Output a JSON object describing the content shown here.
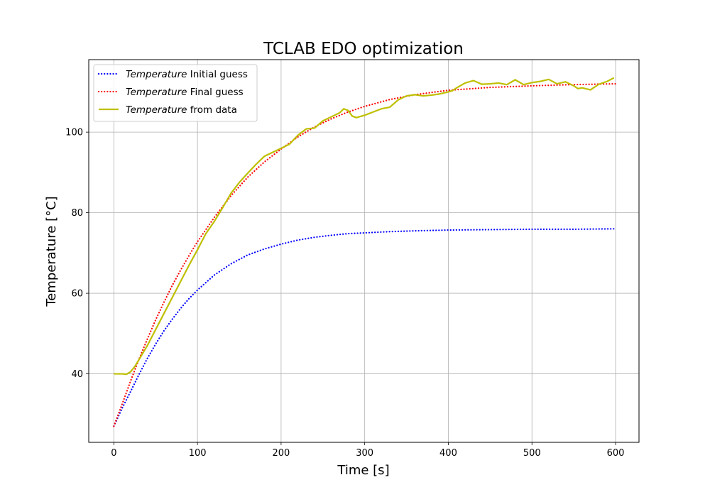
{
  "chart_data": {
    "type": "line",
    "title": "TCLAB EDO optimization",
    "xlabel": "Time [s]",
    "ylabel": "Temperature [°C]",
    "xlim": [
      -30,
      628
    ],
    "ylim": [
      23,
      118
    ],
    "xticks": [
      0,
      100,
      200,
      300,
      400,
      500,
      600
    ],
    "yticks": [
      40,
      60,
      80,
      100
    ],
    "grid": true,
    "legend_position": "top-left",
    "series": [
      {
        "name_italic": "Temperature",
        "name_rest": " Initial guess",
        "color": "#0000ff",
        "style": "dotted",
        "x": [
          0,
          10,
          20,
          30,
          40,
          50,
          60,
          70,
          80,
          90,
          100,
          120,
          140,
          160,
          180,
          200,
          220,
          240,
          260,
          280,
          300,
          330,
          360,
          400,
          450,
          500,
          550,
          600
        ],
        "y": [
          27,
          31.5,
          35.6,
          39.8,
          43.8,
          47.4,
          50.7,
          53.6,
          56.3,
          58.7,
          60.8,
          64.5,
          67.3,
          69.5,
          71.0,
          72.2,
          73.2,
          73.9,
          74.4,
          74.8,
          75.0,
          75.3,
          75.5,
          75.7,
          75.8,
          75.9,
          75.9,
          76.0
        ]
      },
      {
        "name_italic": "Temperature",
        "name_rest": " Final guess",
        "color": "#ff0000",
        "style": "dotted",
        "x": [
          0,
          10,
          20,
          30,
          40,
          50,
          60,
          70,
          80,
          90,
          100,
          120,
          140,
          160,
          180,
          200,
          220,
          240,
          260,
          280,
          300,
          330,
          360,
          400,
          450,
          500,
          550,
          600
        ],
        "y": [
          27,
          32.5,
          38.2,
          43.6,
          48.6,
          53.4,
          57.8,
          62.0,
          65.8,
          69.4,
          72.8,
          78.8,
          84.2,
          88.8,
          92.6,
          95.8,
          98.8,
          101.3,
          103.3,
          105.0,
          106.4,
          108.1,
          109.3,
          110.4,
          111.1,
          111.5,
          111.8,
          112.0
        ]
      },
      {
        "name_italic": "Temperature",
        "name_rest": " from data",
        "color": "#bfbf00",
        "style": "solid",
        "x": [
          0,
          5,
          10,
          15,
          20,
          25,
          30,
          40,
          50,
          60,
          70,
          80,
          90,
          100,
          110,
          120,
          130,
          140,
          150,
          160,
          170,
          180,
          190,
          200,
          210,
          220,
          230,
          240,
          250,
          260,
          270,
          275,
          280,
          285,
          290,
          300,
          310,
          320,
          330,
          340,
          350,
          360,
          370,
          380,
          390,
          400,
          405,
          410,
          420,
          430,
          440,
          450,
          460,
          470,
          480,
          490,
          500,
          510,
          520,
          530,
          540,
          550,
          555,
          560,
          570,
          580,
          590,
          598
        ],
        "y": [
          40,
          40,
          40,
          39.9,
          40.5,
          41.8,
          43.5,
          47.0,
          51.0,
          55.0,
          59.0,
          63.0,
          67.0,
          70.8,
          74.8,
          77.8,
          81.2,
          84.8,
          87.5,
          89.8,
          92.0,
          94.0,
          95.0,
          96.0,
          97.0,
          99.2,
          100.8,
          101.0,
          102.8,
          103.8,
          104.8,
          105.8,
          105.4,
          104.0,
          103.6,
          104.2,
          105.0,
          105.8,
          106.2,
          108.0,
          109.0,
          109.3,
          109.0,
          109.2,
          109.5,
          110.0,
          110.3,
          111.0,
          112.2,
          112.8,
          111.9,
          112.0,
          112.2,
          111.8,
          113.0,
          111.8,
          112.3,
          112.6,
          113.1,
          112.0,
          112.5,
          111.5,
          110.8,
          111.0,
          110.5,
          111.9,
          112.6,
          113.5
        ]
      }
    ]
  }
}
